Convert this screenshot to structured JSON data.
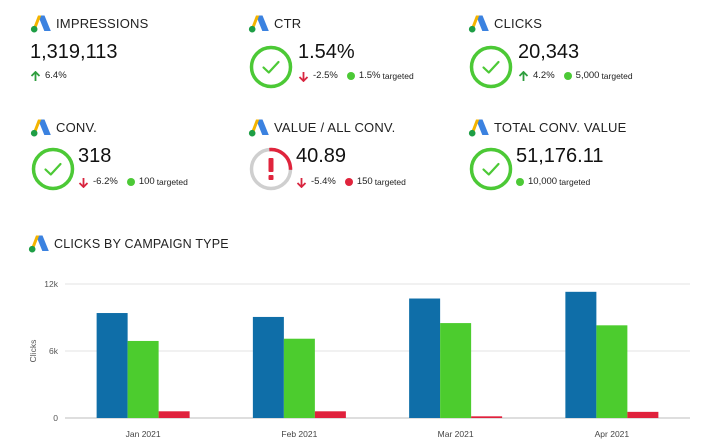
{
  "colors": {
    "positive": "#2e9e3e",
    "negative": "#d8253f",
    "green_status": "#4cc936",
    "red_status": "#e0243c",
    "ring_track": "#cfcfcf",
    "bar_blue": "#0f6ea8",
    "bar_green": "#4ccc2e",
    "bar_red": "#e0213c"
  },
  "kpis": [
    {
      "id": "impressions",
      "title": "IMPRESSIONS",
      "value": "1,319,113",
      "delta": "6.4%",
      "delta_dir": "up",
      "has_target": false
    },
    {
      "id": "ctr",
      "title": "CTR",
      "value": "1.54%",
      "delta": "-2.5%",
      "delta_dir": "down",
      "has_target": true,
      "target": "1.5%",
      "target_label": "targeted",
      "status": "ok"
    },
    {
      "id": "clicks",
      "title": "CLICKS",
      "value": "20,343",
      "delta": "4.2%",
      "delta_dir": "up",
      "has_target": true,
      "target": "5,000",
      "target_label": "targeted",
      "status": "ok"
    },
    {
      "id": "conv",
      "title": "CONV.",
      "value": "318",
      "delta": "-6.2%",
      "delta_dir": "down",
      "has_target": true,
      "target": "100",
      "target_label": "targeted",
      "status": "ok"
    },
    {
      "id": "value_per_conv",
      "title": "VALUE / ALL CONV.",
      "value": "40.89",
      "delta": "-5.4%",
      "delta_dir": "down",
      "has_target": true,
      "target": "150",
      "target_label": "targeted",
      "status": "alert",
      "progress": 0.27
    },
    {
      "id": "total_conv_value",
      "title": "TOTAL CONV. VALUE",
      "value": "51,176.11",
      "delta": "",
      "delta_dir": "none",
      "has_target": true,
      "target": "10,000",
      "target_label": "targeted",
      "status": "ok"
    }
  ],
  "chart_section": {
    "title": "CLICKS BY CAMPAIGN TYPE"
  },
  "chart_data": {
    "type": "bar",
    "title": "CLICKS BY CAMPAIGN TYPE",
    "xlabel": "",
    "ylabel": "Clicks",
    "categories": [
      "Jan 2021",
      "Feb 2021",
      "Mar 2021",
      "Apr 2021"
    ],
    "ylim": [
      0,
      12000
    ],
    "yticks": [
      0,
      6000,
      12000
    ],
    "ytick_labels": [
      "0",
      "6k",
      "12k"
    ],
    "grid": true,
    "legend": "none",
    "series": [
      {
        "values": [
          9400,
          9050,
          10700,
          11300
        ],
        "color": "#0f6ea8"
      },
      {
        "values": [
          6900,
          7100,
          8500,
          8300
        ],
        "color": "#4ccc2e"
      },
      {
        "values": [
          600,
          600,
          150,
          550
        ],
        "color": "#e0213c"
      }
    ]
  }
}
